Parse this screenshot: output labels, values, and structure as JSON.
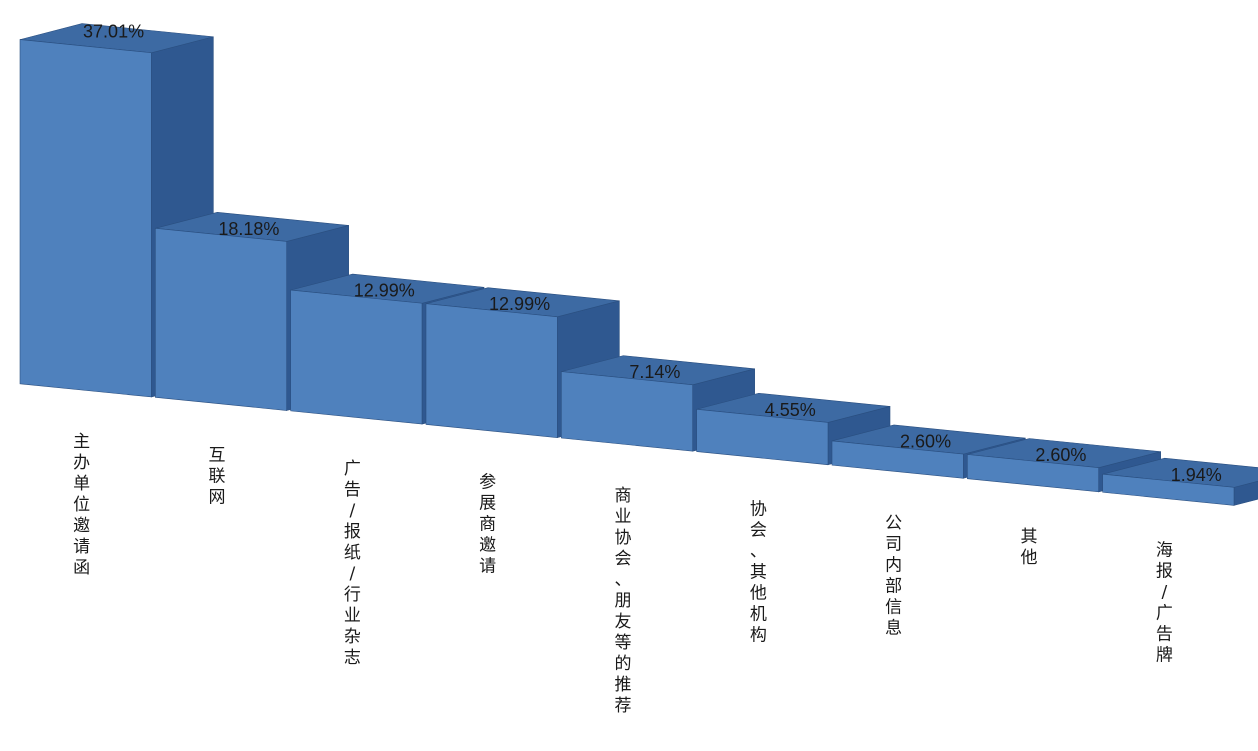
{
  "chart_data": {
    "type": "bar",
    "style": "3d-column",
    "title": "",
    "xlabel": "",
    "ylabel": "",
    "ylim": [
      0,
      40
    ],
    "grid": false,
    "legend": "none",
    "categories": [
      "主办单位邀请函",
      "互联网",
      "广告/报纸/行业杂志",
      "参展商邀请",
      "商业协会、朋友等的推荐",
      "协会、其他机构",
      "公司内部信息",
      "其他",
      "海报/广告牌"
    ],
    "values": [
      37.01,
      18.18,
      12.99,
      12.99,
      7.14,
      4.55,
      2.6,
      2.6,
      1.94
    ],
    "labels": [
      "37.01%",
      "18.18%",
      "12.99%",
      "12.99%",
      "7.14%",
      "4.55%",
      "2.60%",
      "2.60%",
      "1.94%"
    ],
    "colors": {
      "front": "#4f81bd",
      "top": "#3d6aa3",
      "side": "#2f5890",
      "edge": "#2a4f80"
    }
  }
}
